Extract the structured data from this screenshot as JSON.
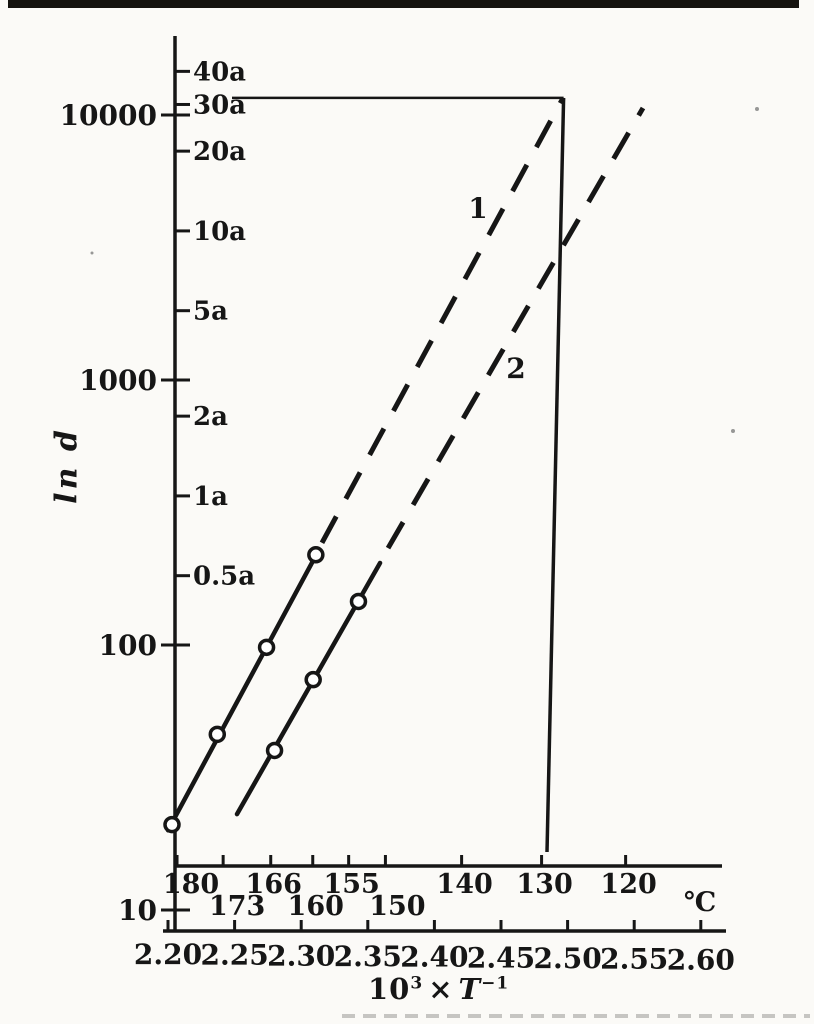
{
  "page": {
    "background": "#fbfaf7",
    "ink": "#161616"
  },
  "y_axis": {
    "title": "ln d",
    "decade_ticks": [
      {
        "value": 10000,
        "label": "10000"
      },
      {
        "value": 1000,
        "label": "1000"
      },
      {
        "value": 100,
        "label": "100"
      },
      {
        "value": 10,
        "label": "10"
      }
    ],
    "year_ticks": [
      {
        "years": 40,
        "label": "40a"
      },
      {
        "years": 30,
        "label": "30a"
      },
      {
        "years": 20,
        "label": "20a"
      },
      {
        "years": 10,
        "label": "10a"
      },
      {
        "years": 5,
        "label": "5a"
      },
      {
        "years": 2,
        "label": "2a"
      },
      {
        "years": 1,
        "label": "1a"
      },
      {
        "years": 0.5,
        "label": "0.5a"
      }
    ]
  },
  "x_axis_bottom": {
    "title_parts": {
      "base": "10",
      "exp": "3",
      "times": "×",
      "symbol": "T",
      "symbol_exp": "−1"
    },
    "ticks": [
      {
        "value": 2.2,
        "label": "2.20"
      },
      {
        "value": 2.25,
        "label": "2.25"
      },
      {
        "value": 2.3,
        "label": "2.30"
      },
      {
        "value": 2.35,
        "label": "2.35"
      },
      {
        "value": 2.4,
        "label": "2.40"
      },
      {
        "value": 2.45,
        "label": "2.45"
      },
      {
        "value": 2.5,
        "label": "2.50"
      },
      {
        "value": 2.55,
        "label": "2.55"
      },
      {
        "value": 2.6,
        "label": "2.60"
      }
    ]
  },
  "x_axis_top": {
    "unit": "℃",
    "ticks": [
      {
        "temp": 180,
        "label": "180",
        "row": 1
      },
      {
        "temp": 173,
        "label": "173",
        "row": 2
      },
      {
        "temp": 166,
        "label": "166",
        "row": 1
      },
      {
        "temp": 160,
        "label": "160",
        "row": 2
      },
      {
        "temp": 155,
        "label": "155",
        "row": 1
      },
      {
        "temp": 150,
        "label": "150",
        "row": 2
      },
      {
        "temp": 140,
        "label": "140",
        "row": 1
      },
      {
        "temp": 130,
        "label": "130",
        "row": 1
      },
      {
        "temp": 120,
        "label": "120",
        "row": 1
      }
    ]
  },
  "chart_data": {
    "type": "line",
    "title": "",
    "xlabel": "10³ × T⁻¹",
    "ylabel": "ln d",
    "x_range": [
      2.2,
      2.6
    ],
    "y_scale": "log",
    "y_range_days": [
      10,
      20000
    ],
    "x_top_axis": {
      "unit": "℃",
      "temperatures": [
        180,
        173,
        166,
        160,
        155,
        150,
        140,
        130,
        120
      ]
    },
    "y_right_axis": {
      "unit": "a (years)",
      "tick_years": [
        40,
        30,
        20,
        10,
        5,
        2,
        1,
        0.5
      ]
    },
    "series": [
      {
        "name": "1",
        "points": [
          {
            "inv": 2.203,
            "days": 21
          },
          {
            "inv": 2.237,
            "days": 46
          },
          {
            "inv": 2.274,
            "days": 98
          },
          {
            "inv": 2.311,
            "days": 219
          }
        ],
        "solid": [
          [
            2.2,
            20
          ],
          [
            2.3111,
            218
          ]
        ],
        "dashed": [
          [
            2.3156,
            243
          ],
          [
            2.4966,
            11600
          ]
        ]
      },
      {
        "name": "2",
        "points": [
          {
            "inv": 2.28,
            "days": 40
          },
          {
            "inv": 2.309,
            "days": 74
          },
          {
            "inv": 2.343,
            "days": 146
          }
        ],
        "solid": [
          [
            2.2518,
            23
          ],
          [
            2.3592,
            204
          ]
        ],
        "dashed": [
          [
            2.3652,
            232
          ],
          [
            2.5566,
            10630
          ]
        ]
      }
    ],
    "annotation": {
      "temp_c": 130,
      "inv": 2.497,
      "life_years": 30,
      "life_days": 11600
    }
  }
}
